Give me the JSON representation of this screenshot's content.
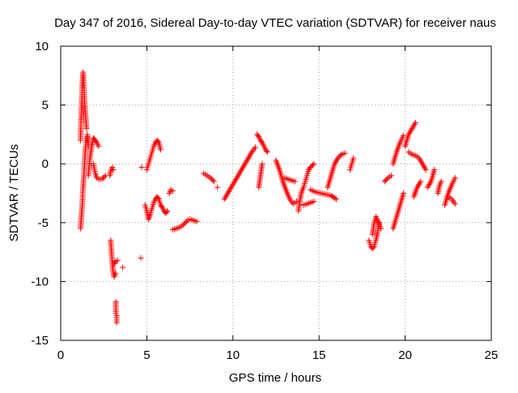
{
  "chart_data": {
    "type": "scatter",
    "title": "Day 347 of 2016, Sidereal Day-to-day VTEC variation (SDTVAR) for receiver naus",
    "xlabel": "GPS time / hours",
    "ylabel": "SDTVAR / TECUs",
    "xlim": [
      0,
      25
    ],
    "ylim": [
      -15,
      10
    ],
    "xticks": [
      0,
      5,
      10,
      15,
      20,
      25
    ],
    "yticks": [
      -15,
      -10,
      -5,
      0,
      5,
      10
    ],
    "grid": true,
    "marker": "+",
    "color": "#ff0000",
    "segments": [
      {
        "x": [
          1.15,
          1.2,
          1.25,
          1.3,
          1.35,
          1.4,
          1.45,
          1.5
        ],
        "y": [
          2.0,
          4.5,
          6.5,
          7.8,
          6.5,
          5.0,
          4.0,
          3.0
        ]
      },
      {
        "x": [
          1.15,
          1.2,
          1.25,
          1.3,
          1.35,
          1.4,
          1.45,
          1.5,
          1.55,
          1.6
        ],
        "y": [
          -5.5,
          -4.5,
          -3.5,
          -2.0,
          -1.0,
          0.5,
          1.5,
          2.0,
          2.5,
          1.5
        ]
      },
      {
        "x": [
          1.6,
          1.7,
          1.8,
          1.9,
          2.0,
          2.1,
          2.2
        ],
        "y": [
          -1.0,
          0.5,
          1.5,
          2.2,
          2.0,
          1.8,
          1.5
        ]
      },
      {
        "x": [
          1.9,
          2.0,
          2.1,
          2.2,
          2.4,
          2.6
        ],
        "y": [
          0.0,
          -0.8,
          -1.2,
          -1.3,
          -1.3,
          -1.0
        ]
      },
      {
        "x": [
          2.85,
          2.9,
          3.0,
          3.05
        ],
        "y": [
          -1.0,
          -0.6,
          -0.3,
          -0.5
        ]
      },
      {
        "x": [
          2.9,
          2.95,
          3.0,
          3.05,
          3.1,
          3.2
        ],
        "y": [
          -6.5,
          -7.5,
          -8.5,
          -9.2,
          -9.6,
          -9.3
        ]
      },
      {
        "x": [
          3.1,
          3.2,
          3.3
        ],
        "y": [
          -8.5,
          -8.3,
          -8.2
        ]
      },
      {
        "x": [
          3.2,
          3.2,
          3.25,
          3.25
        ],
        "y": [
          -11.7,
          -12.7,
          -12.9,
          -13.5
        ]
      },
      {
        "x": [
          3.6
        ],
        "y": [
          -8.8
        ]
      },
      {
        "x": [
          4.65
        ],
        "y": [
          -8.0
        ]
      },
      {
        "x": [
          4.7
        ],
        "y": [
          -0.3
        ]
      },
      {
        "x": [
          4.9,
          5.0,
          5.1,
          5.2,
          5.3,
          5.4,
          5.5,
          5.6,
          5.7,
          5.8
        ],
        "y": [
          -3.5,
          -4.0,
          -4.7,
          -4.3,
          -3.8,
          -3.3,
          -3.0,
          -2.8,
          -3.0,
          -3.5
        ]
      },
      {
        "x": [
          5.0,
          5.1,
          5.2,
          5.3,
          5.4,
          5.5,
          5.6,
          5.7,
          5.8
        ],
        "y": [
          -0.5,
          0.0,
          0.5,
          1.0,
          1.5,
          1.8,
          2.0,
          1.8,
          1.2
        ]
      },
      {
        "x": [
          5.8,
          5.9,
          6.0,
          6.1,
          6.2
        ],
        "y": [
          -3.5,
          -3.7,
          -4.0,
          -4.2,
          -4.0
        ]
      },
      {
        "x": [
          6.3,
          6.4,
          6.5
        ],
        "y": [
          -2.5,
          -2.2,
          -2.3
        ]
      },
      {
        "x": [
          6.5,
          6.7,
          6.9,
          7.1,
          7.3,
          7.5,
          7.7,
          7.9
        ],
        "y": [
          -5.6,
          -5.5,
          -5.4,
          -5.2,
          -4.9,
          -4.7,
          -4.8,
          -4.9
        ]
      },
      {
        "x": [
          8.3,
          8.5,
          8.7,
          8.9
        ],
        "y": [
          -0.8,
          -1.0,
          -1.2,
          -1.5
        ]
      },
      {
        "x": [
          9.1
        ],
        "y": [
          -2.0
        ]
      },
      {
        "x": [
          9.5,
          9.7,
          9.9,
          10.1,
          10.3,
          10.5,
          10.7,
          10.9,
          11.1,
          11.3
        ],
        "y": [
          -3.0,
          -2.5,
          -2.0,
          -1.5,
          -1.0,
          -0.5,
          0.0,
          0.5,
          1.0,
          1.4
        ]
      },
      {
        "x": [
          11.4,
          11.5,
          11.6,
          11.7,
          11.8,
          11.9,
          12.0
        ],
        "y": [
          2.5,
          2.3,
          2.0,
          1.8,
          1.5,
          1.2,
          1.0
        ]
      },
      {
        "x": [
          11.5,
          11.6,
          11.7
        ],
        "y": [
          -2.0,
          -1.0,
          0.0
        ]
      },
      {
        "x": [
          12.5,
          12.7,
          12.9,
          13.1,
          13.3,
          13.5,
          13.7
        ],
        "y": [
          0.3,
          -0.5,
          -1.5,
          -2.3,
          -3.0,
          -3.4,
          -3.2
        ]
      },
      {
        "x": [
          13.0,
          13.2,
          13.4,
          13.6
        ],
        "y": [
          -1.2,
          -1.3,
          -1.4,
          -1.5
        ]
      },
      {
        "x": [
          13.8,
          13.9,
          14.0,
          14.1,
          14.2,
          14.3,
          14.4,
          14.5,
          14.7
        ],
        "y": [
          -4.0,
          -3.0,
          -2.3,
          -2.0,
          -1.5,
          -1.0,
          -0.5,
          -0.3,
          0.0
        ]
      },
      {
        "x": [
          14.1,
          14.3,
          14.5,
          14.7
        ],
        "y": [
          -3.5,
          -3.4,
          -3.3,
          -3.2
        ]
      },
      {
        "x": [
          14.5,
          14.8,
          15.1,
          15.4,
          15.7,
          16.0
        ],
        "y": [
          -2.2,
          -2.4,
          -2.5,
          -2.6,
          -2.7,
          -3.0
        ]
      },
      {
        "x": [
          15.5,
          15.7,
          15.9,
          16.1,
          16.3,
          16.5
        ],
        "y": [
          -2.0,
          -1.0,
          0.0,
          0.5,
          0.8,
          0.9
        ]
      },
      {
        "x": [
          16.8,
          16.9,
          17.0
        ],
        "y": [
          -0.5,
          0.0,
          0.5
        ]
      },
      {
        "x": [
          17.9,
          18.0,
          18.1,
          18.2,
          18.3,
          18.4,
          18.5
        ],
        "y": [
          -6.5,
          -7.0,
          -7.2,
          -7.0,
          -6.5,
          -5.8,
          -5.0
        ]
      },
      {
        "x": [
          18.1,
          18.2,
          18.3,
          18.4,
          18.5,
          18.6
        ],
        "y": [
          -6.0,
          -5.0,
          -4.5,
          -4.8,
          -5.2,
          -5.5
        ]
      },
      {
        "x": [
          18.8,
          19.0,
          19.2
        ],
        "y": [
          -1.5,
          -1.2,
          -1.0
        ]
      },
      {
        "x": [
          19.3,
          19.5,
          19.7,
          19.9
        ],
        "y": [
          -5.5,
          -4.5,
          -3.5,
          -2.5
        ]
      },
      {
        "x": [
          19.3,
          19.5,
          19.7,
          19.9
        ],
        "y": [
          0.0,
          1.0,
          1.8,
          2.4
        ]
      },
      {
        "x": [
          20.0,
          20.2,
          20.4,
          20.6
        ],
        "y": [
          1.5,
          2.5,
          3.0,
          3.5
        ]
      },
      {
        "x": [
          20.2,
          20.4,
          20.6,
          20.8,
          21.0,
          21.2
        ],
        "y": [
          1.0,
          0.8,
          0.7,
          0.5,
          0.0,
          -0.5
        ]
      },
      {
        "x": [
          20.5,
          20.7,
          20.9
        ],
        "y": [
          -2.8,
          -2.0,
          -1.5
        ]
      },
      {
        "x": [
          21.3,
          21.5,
          21.7
        ],
        "y": [
          -2.0,
          -1.5,
          -0.5
        ]
      },
      {
        "x": [
          21.9,
          22.0,
          22.1
        ],
        "y": [
          -2.5,
          -1.8,
          -1.5
        ]
      },
      {
        "x": [
          22.3,
          22.5,
          22.7,
          22.9
        ],
        "y": [
          -3.5,
          -2.5,
          -1.8,
          -1.2
        ]
      },
      {
        "x": [
          22.5,
          22.7,
          22.9
        ],
        "y": [
          -2.8,
          -3.0,
          -3.4
        ]
      }
    ]
  }
}
